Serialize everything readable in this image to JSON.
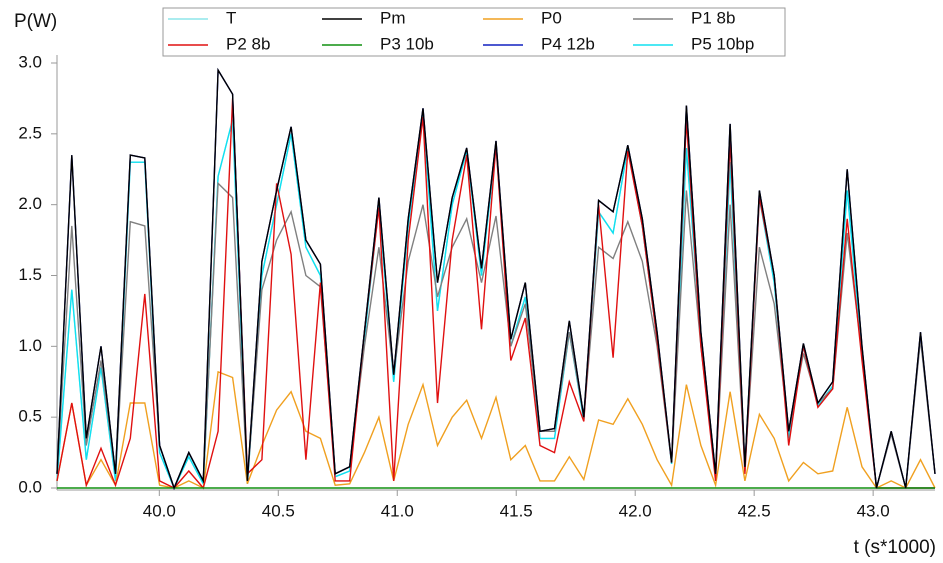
{
  "chart_data": {
    "type": "line",
    "ylabel": "P(W)",
    "xlabel": "t (s*1000)",
    "xlim": [
      39.57,
      43.26
    ],
    "ylim": [
      0,
      3
    ],
    "xticks": [
      {
        "value": 40,
        "label": "40.0"
      },
      {
        "value": 40.5,
        "label": "40.5"
      },
      {
        "value": 41,
        "label": "41.0"
      },
      {
        "value": 41.5,
        "label": "41.5"
      },
      {
        "value": 42,
        "label": "42.0"
      },
      {
        "value": 42.5,
        "label": "42.5"
      },
      {
        "value": 43,
        "label": "43.0"
      }
    ],
    "yticks": [
      {
        "value": 0,
        "label": "0.0"
      },
      {
        "value": 0.5,
        "label": "0.5"
      },
      {
        "value": 1,
        "label": "1.0"
      },
      {
        "value": 1.5,
        "label": "1.5"
      },
      {
        "value": 2,
        "label": "2.0"
      },
      {
        "value": 2.5,
        "label": "2.5"
      },
      {
        "value": 3,
        "label": "3.0"
      }
    ],
    "grid": false,
    "legend": "top",
    "x": [
      39.57,
      39.632,
      39.693,
      39.755,
      39.816,
      39.878,
      39.939,
      40.001,
      40.062,
      40.124,
      40.185,
      40.247,
      40.308,
      40.37,
      40.431,
      40.493,
      40.554,
      40.616,
      40.677,
      40.739,
      40.8,
      40.862,
      40.923,
      40.985,
      41.046,
      41.108,
      41.169,
      41.231,
      41.292,
      41.354,
      41.415,
      41.477,
      41.538,
      41.6,
      41.661,
      41.723,
      41.784,
      41.846,
      41.907,
      41.969,
      42.03,
      42.092,
      42.153,
      42.215,
      42.276,
      42.338,
      42.399,
      42.461,
      42.522,
      42.584,
      42.645,
      42.707,
      42.768,
      42.83,
      42.891,
      42.953,
      43.014,
      43.076,
      43.137,
      43.199,
      43.26
    ],
    "series": [
      {
        "name": "T",
        "color": "#8ee6ea",
        "values": [
          0.05,
          1.4,
          0.2,
          0.85,
          0.05,
          2.3,
          2.3,
          0.25,
          0,
          0.22,
          0.03,
          2.2,
          2.6,
          0.03,
          1.5,
          2.0,
          2.5,
          1.7,
          1.5,
          0.08,
          0.12,
          1.05,
          2.0,
          0.75,
          1.85,
          2.65,
          1.25,
          2.0,
          2.38,
          1.5,
          2.42,
          1.0,
          1.35,
          0.35,
          0.35,
          1.1,
          0.48,
          1.95,
          1.8,
          2.4,
          1.85,
          1.05,
          0.17,
          2.4,
          1.05,
          0.08,
          2.3,
          0.12,
          2.05,
          1.45,
          0.35,
          1.0,
          0.58,
          0.72,
          2.1,
          0.95,
          0,
          0,
          0,
          0,
          0
        ]
      },
      {
        "name": "Pm",
        "color": "#000000",
        "values": [
          0.1,
          2.35,
          0.35,
          1.0,
          0.1,
          2.35,
          2.33,
          0.3,
          0,
          0.25,
          0.05,
          2.95,
          2.78,
          0.05,
          1.6,
          2.1,
          2.55,
          1.75,
          1.58,
          0.1,
          0.15,
          1.1,
          2.05,
          0.8,
          1.9,
          2.68,
          1.45,
          2.05,
          2.4,
          1.55,
          2.45,
          1.05,
          1.45,
          0.4,
          0.42,
          1.18,
          0.5,
          2.03,
          1.95,
          2.42,
          1.9,
          1.1,
          0.18,
          2.7,
          1.1,
          0.1,
          2.57,
          0.15,
          2.1,
          1.5,
          0.4,
          1.02,
          0.6,
          0.75,
          2.25,
          1.0,
          0,
          0.4,
          0,
          1.1,
          0.1
        ]
      },
      {
        "name": "P0",
        "color": "#f0a020",
        "values": [
          0.05,
          0.6,
          0.02,
          0.2,
          0.02,
          0.6,
          0.6,
          0.02,
          0,
          0.05,
          0,
          0.82,
          0.78,
          0.03,
          0.3,
          0.55,
          0.68,
          0.4,
          0.35,
          0.02,
          0.03,
          0.25,
          0.5,
          0.05,
          0.45,
          0.73,
          0.3,
          0.5,
          0.62,
          0.35,
          0.64,
          0.2,
          0.3,
          0.05,
          0.05,
          0.22,
          0.06,
          0.48,
          0.45,
          0.63,
          0.45,
          0.2,
          0.02,
          0.73,
          0.3,
          0.02,
          0.68,
          0.05,
          0.52,
          0.35,
          0.05,
          0.18,
          0.1,
          0.12,
          0.57,
          0.15,
          0,
          0.05,
          0,
          0.2,
          0
        ]
      },
      {
        "name": "P1 8b",
        "color": "#808080",
        "values": [
          0.1,
          1.85,
          0.3,
          0.9,
          0.1,
          1.88,
          1.85,
          0.3,
          0,
          0.25,
          0.05,
          2.15,
          2.05,
          0.05,
          1.4,
          1.75,
          1.95,
          1.5,
          1.42,
          0.1,
          0.15,
          1.0,
          1.7,
          0.8,
          1.6,
          2.0,
          1.35,
          1.7,
          1.9,
          1.45,
          1.92,
          1.0,
          1.3,
          0.4,
          0.4,
          1.1,
          0.5,
          1.7,
          1.62,
          1.88,
          1.6,
          1.0,
          0.18,
          2.1,
          1.0,
          0.1,
          2.0,
          0.15,
          1.7,
          1.3,
          0.4,
          0.95,
          0.6,
          0.7,
          1.8,
          0.95,
          0,
          0.38,
          0,
          1.05,
          0.1
        ]
      },
      {
        "name": "P2 8b",
        "color": "#e01010",
        "values": [
          0.05,
          0.6,
          0.02,
          0.28,
          0.02,
          0.35,
          1.37,
          0.05,
          0,
          0.12,
          0,
          0.4,
          2.75,
          0.1,
          0.2,
          2.15,
          1.65,
          0.2,
          1.45,
          0.05,
          0.05,
          1.1,
          1.98,
          0.05,
          1.75,
          2.62,
          0.6,
          1.75,
          2.35,
          1.12,
          2.42,
          0.9,
          1.2,
          0.3,
          0.25,
          0.75,
          0.47,
          2.0,
          0.92,
          2.38,
          1.85,
          1.05,
          0.18,
          2.6,
          1.0,
          0.05,
          2.45,
          0.1,
          2.05,
          1.5,
          0.3,
          1.0,
          0.57,
          0.7,
          1.9,
          0.9,
          0,
          0,
          0,
          0,
          0
        ]
      },
      {
        "name": "P3 10b",
        "color": "#109010",
        "values": [
          0,
          0,
          0,
          0,
          0,
          0,
          0,
          0,
          0,
          0,
          0,
          0,
          0,
          0,
          0,
          0,
          0,
          0,
          0,
          0,
          0,
          0,
          0,
          0,
          0,
          0,
          0,
          0,
          0,
          0,
          0,
          0,
          0,
          0,
          0,
          0,
          0,
          0,
          0,
          0,
          0,
          0,
          0,
          0,
          0,
          0,
          0,
          0,
          0,
          0,
          0,
          0,
          0,
          0,
          0,
          0,
          0,
          0,
          0,
          0,
          0
        ]
      },
      {
        "name": "P4 12b",
        "color": "#1020c0",
        "values": [
          0.1,
          2.35,
          0.35,
          1.0,
          0.1,
          2.35,
          2.33,
          0.3,
          0,
          0.25,
          0.05,
          2.95,
          2.78,
          0.05,
          1.6,
          2.1,
          2.55,
          1.75,
          1.58,
          0.1,
          0.15,
          1.1,
          2.05,
          0.8,
          1.9,
          2.68,
          1.45,
          2.05,
          2.4,
          1.55,
          2.45,
          1.05,
          1.45,
          0.4,
          0.42,
          1.18,
          0.5,
          2.03,
          1.95,
          2.42,
          1.9,
          1.1,
          0.18,
          2.7,
          1.1,
          0.1,
          2.57,
          0.15,
          2.1,
          1.5,
          0.4,
          1.02,
          0.6,
          0.75,
          2.25,
          1.0,
          0,
          0.4,
          0,
          1.1,
          0.1
        ]
      },
      {
        "name": "P5 10bp",
        "color": "#10e0f0",
        "values": [
          0.05,
          1.4,
          0.2,
          0.85,
          0.05,
          2.3,
          2.3,
          0.25,
          0,
          0.22,
          0.03,
          2.2,
          2.6,
          0.03,
          1.5,
          2.0,
          2.5,
          1.7,
          1.5,
          0.08,
          0.12,
          1.05,
          2.0,
          0.75,
          1.85,
          2.65,
          1.25,
          2.0,
          2.38,
          1.5,
          2.42,
          1.0,
          1.35,
          0.35,
          0.35,
          1.1,
          0.48,
          1.95,
          1.8,
          2.4,
          1.85,
          1.05,
          0.17,
          2.4,
          1.05,
          0.08,
          2.3,
          0.12,
          2.05,
          1.45,
          0.35,
          1.0,
          0.58,
          0.72,
          2.1,
          0.95,
          0,
          0,
          0,
          0,
          0
        ]
      }
    ]
  }
}
